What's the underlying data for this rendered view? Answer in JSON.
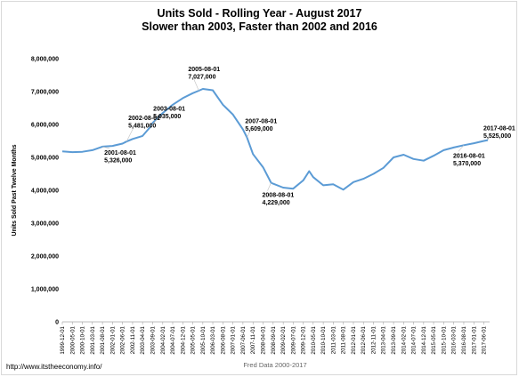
{
  "chart_data": {
    "type": "line",
    "title": "Units Sold - Rolling Year - August 2017",
    "subtitle": "Slower than 2003, Faster than 2002 and 2016",
    "ylabel": "Units Sold Past Twelve Months",
    "xlabel": "Fred Data 2000-2017",
    "ylim": [
      0,
      8000000
    ],
    "grid": false,
    "legend": "none",
    "line_color": "#5b9bd5",
    "y_ticks": [
      "0",
      "1,000,000",
      "2,000,000",
      "3,000,000",
      "4,000,000",
      "5,000,000",
      "6,000,000",
      "7,000,000",
      "8,000,000"
    ],
    "x_ticks": [
      "1999-12-01",
      "2000-05-01",
      "2000-10-01",
      "2001-03-01",
      "2001-08-01",
      "2002-01-01",
      "2002-06-01",
      "2002-11-01",
      "2003-04-01",
      "2003-09-01",
      "2004-02-01",
      "2004-07-01",
      "2004-12-01",
      "2005-05-01",
      "2005-10-01",
      "2006-03-01",
      "2006-08-01",
      "2007-01-01",
      "2007-06-01",
      "2007-11-01",
      "2008-04-01",
      "2008-09-01",
      "2009-02-01",
      "2009-07-01",
      "2009-12-01",
      "2010-05-01",
      "2010-10-01",
      "2011-03-01",
      "2011-08-01",
      "2012-01-01",
      "2012-06-01",
      "2012-11-01",
      "2013-04-01",
      "2013-09-01",
      "2014-02-01",
      "2014-07-01",
      "2014-12-01",
      "2015-05-01",
      "2015-10-01",
      "2016-03-01",
      "2016-08-01",
      "2017-01-01",
      "2017-06-01"
    ],
    "series": [
      {
        "x": [
          "1999-12-01",
          "2000-05-01",
          "2000-10-01",
          "2001-03-01",
          "2001-08-01",
          "2002-01-01",
          "2002-06-01",
          "2002-08-01",
          "2002-11-01",
          "2003-04-01",
          "2003-08-01",
          "2003-09-01",
          "2004-02-01",
          "2004-07-01",
          "2004-12-01",
          "2005-05-01",
          "2005-08-01",
          "2005-10-01",
          "2006-03-01",
          "2006-08-01",
          "2007-01-01",
          "2007-06-01",
          "2007-08-01",
          "2007-11-01",
          "2008-04-01",
          "2008-08-01",
          "2008-09-01",
          "2009-02-01",
          "2009-07-01",
          "2009-12-01",
          "2010-03-01",
          "2010-05-01",
          "2010-10-01",
          "2011-03-01",
          "2011-08-01",
          "2012-01-01",
          "2012-06-01",
          "2012-11-01",
          "2013-04-01",
          "2013-09-01",
          "2014-02-01",
          "2014-07-01",
          "2014-12-01",
          "2015-05-01",
          "2015-10-01",
          "2016-03-01",
          "2016-08-01",
          "2017-01-01",
          "2017-06-01",
          "2017-08-01"
        ],
        "values": [
          5180000,
          5160000,
          5170000,
          5220000,
          5326000,
          5350000,
          5420000,
          5481000,
          5560000,
          5650000,
          5935000,
          6050000,
          6350000,
          6600000,
          6800000,
          6950000,
          7027000,
          7080000,
          7040000,
          6600000,
          6300000,
          5850000,
          5609000,
          5100000,
          4700000,
          4229000,
          4200000,
          4080000,
          4050000,
          4300000,
          4580000,
          4400000,
          4150000,
          4180000,
          4020000,
          4250000,
          4350000,
          4500000,
          4680000,
          5000000,
          5080000,
          4950000,
          4900000,
          5050000,
          5220000,
          5300000,
          5370000,
          5430000,
          5500000,
          5525000
        ]
      }
    ],
    "annotations": [
      {
        "date": "2001-08-01",
        "value": "5,326,000"
      },
      {
        "date": "2002-08-01",
        "value": "5,481,000"
      },
      {
        "date": "2003-08-01",
        "value": "5,935,000"
      },
      {
        "date": "2005-08-01",
        "value": "7,027,000"
      },
      {
        "date": "2007-08-01",
        "value": "5,609,000"
      },
      {
        "date": "2008-08-01",
        "value": "4,229,000"
      },
      {
        "date": "2016-08-01",
        "value": "5,370,000"
      },
      {
        "date": "2017-08-01",
        "value": "5,525,000"
      }
    ]
  },
  "source_url": "http://www.itstheeconomy.info/"
}
